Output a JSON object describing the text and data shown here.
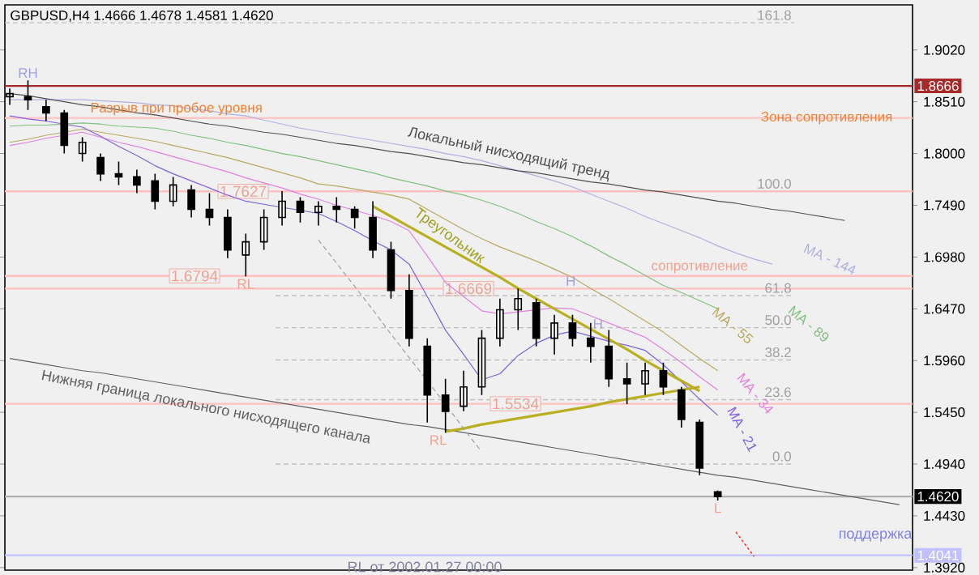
{
  "chart_data": {
    "type": "candlestick",
    "title": "GBPUSD,H4  1.4666 1.4678 1.4581 1.4620",
    "color": "#000000",
    "categories": [
      null,
      null,
      null,
      null,
      null,
      null,
      null,
      null,
      null,
      null,
      null,
      null,
      null,
      null,
      null,
      null,
      null,
      null,
      null,
      null,
      null,
      null,
      null,
      null,
      null,
      null,
      null,
      null,
      null,
      null,
      null,
      null,
      null,
      null,
      null,
      null,
      null,
      null,
      null,
      null,
      null,
      null,
      null,
      null,
      null,
      null,
      null,
      null,
      null,
      null
    ],
    "ohlc": [
      [
        1.856,
        1.864,
        1.848,
        1.859
      ],
      [
        1.856,
        1.872,
        1.843,
        1.853
      ],
      [
        1.846,
        1.853,
        1.832,
        1.84
      ],
      [
        1.84,
        1.843,
        1.8,
        1.808
      ],
      [
        1.8,
        1.816,
        1.792,
        1.811
      ],
      [
        1.796,
        1.8,
        1.773,
        1.78
      ],
      [
        1.78,
        1.792,
        1.769,
        1.777
      ],
      [
        1.777,
        1.784,
        1.761,
        1.769
      ],
      [
        1.773,
        1.78,
        1.745,
        1.753
      ],
      [
        1.753,
        1.777,
        1.748,
        1.769
      ],
      [
        1.764,
        1.769,
        1.737,
        1.745
      ],
      [
        1.745,
        1.761,
        1.729,
        1.737
      ],
      [
        1.737,
        1.745,
        1.697,
        1.705
      ],
      [
        1.7,
        1.721,
        1.679,
        1.713
      ],
      [
        1.713,
        1.745,
        1.705,
        1.737
      ],
      [
        1.737,
        1.763,
        1.729,
        1.753
      ],
      [
        1.753,
        1.757,
        1.732,
        1.742
      ],
      [
        1.742,
        1.753,
        1.729,
        1.748
      ],
      [
        1.748,
        1.757,
        1.732,
        1.745
      ],
      [
        1.745,
        1.748,
        1.726,
        1.737
      ],
      [
        1.737,
        1.753,
        1.697,
        1.705
      ],
      [
        1.705,
        1.713,
        1.657,
        1.665
      ],
      [
        1.665,
        1.681,
        1.61,
        1.618
      ],
      [
        1.61,
        1.618,
        1.535,
        1.562
      ],
      [
        1.562,
        1.578,
        1.525,
        1.546
      ],
      [
        1.551,
        1.586,
        1.546,
        1.57
      ],
      [
        1.57,
        1.626,
        1.562,
        1.618
      ],
      [
        1.618,
        1.657,
        1.61,
        1.646
      ],
      [
        1.646,
        1.667,
        1.626,
        1.657
      ],
      [
        1.653,
        1.657,
        1.61,
        1.618
      ],
      [
        1.618,
        1.641,
        1.602,
        1.633
      ],
      [
        1.633,
        1.641,
        1.61,
        1.618
      ],
      [
        1.618,
        1.633,
        1.594,
        1.61
      ],
      [
        1.61,
        1.626,
        1.57,
        1.578
      ],
      [
        1.578,
        1.594,
        1.553,
        1.573
      ],
      [
        1.573,
        1.594,
        1.562,
        1.586
      ],
      [
        1.586,
        1.594,
        1.562,
        1.57
      ],
      [
        1.567,
        1.57,
        1.53,
        1.538
      ],
      [
        1.535,
        1.538,
        1.483,
        1.49
      ],
      [
        1.4666,
        1.4678,
        1.4581,
        1.462
      ],
      null,
      null,
      null,
      null,
      null,
      null,
      null,
      null,
      null,
      null
    ],
    "ylim": [
      1.3895,
      1.9465
    ],
    "yticks": [
      {
        "value": 1.902,
        "label": "1.9020"
      },
      {
        "value": 1.851,
        "label": "1.8510"
      },
      {
        "value": 1.8,
        "label": "1.8000"
      },
      {
        "value": 1.749,
        "label": "1.7490"
      },
      {
        "value": 1.698,
        "label": "1.6980"
      },
      {
        "value": 1.647,
        "label": "1.6470"
      },
      {
        "value": 1.596,
        "label": "1.5960"
      },
      {
        "value": 1.545,
        "label": "1.5450"
      },
      {
        "value": 1.494,
        "label": "1.4940"
      },
      {
        "value": 1.443,
        "label": "1.4430"
      },
      {
        "value": 1.392,
        "label": "1.3920"
      }
    ],
    "tick_labels": "y",
    "series": [
      {
        "name": "MA - 144",
        "type": "line",
        "color": "#b0b0e0",
        "values": [
          1.853,
          1.853,
          1.853,
          1.853,
          1.853,
          1.852,
          1.851,
          1.85,
          1.848,
          1.847,
          1.844,
          1.842,
          1.839,
          1.837,
          1.833,
          1.829,
          1.825,
          1.822,
          1.819,
          1.816,
          1.813,
          1.81,
          1.807,
          1.804,
          1.8,
          1.797,
          1.793,
          1.788,
          1.783,
          1.778,
          1.773,
          1.767,
          1.76,
          1.753,
          1.746,
          1.738,
          1.731,
          1.724,
          1.717,
          1.709,
          1.702,
          1.696,
          1.691,
          null,
          null,
          null,
          null,
          null,
          null,
          null
        ]
      },
      {
        "name": "MA - 89",
        "type": "line",
        "color": "#80c080",
        "values": [
          1.827,
          1.828,
          1.828,
          1.829,
          1.83,
          1.829,
          1.827,
          1.826,
          1.825,
          1.822,
          1.818,
          1.815,
          1.811,
          1.808,
          1.804,
          1.8,
          1.797,
          1.793,
          1.789,
          1.785,
          1.781,
          1.776,
          1.772,
          1.768,
          1.763,
          1.759,
          1.754,
          1.748,
          1.741,
          1.733,
          1.726,
          1.718,
          1.709,
          1.699,
          1.69,
          1.68,
          1.67,
          1.663,
          1.655,
          1.647,
          null,
          null,
          null,
          null,
          null,
          null,
          null,
          null,
          null,
          null
        ]
      },
      {
        "name": "MA - 55",
        "type": "line",
        "color": "#b8a860",
        "values": [
          1.811,
          1.814,
          1.818,
          1.821,
          1.824,
          1.821,
          1.818,
          1.815,
          1.812,
          1.808,
          1.804,
          1.8,
          1.796,
          1.791,
          1.786,
          1.781,
          1.776,
          1.77,
          1.768,
          1.765,
          1.762,
          1.759,
          1.755,
          1.745,
          1.735,
          1.725,
          1.716,
          1.708,
          1.701,
          1.694,
          1.686,
          1.678,
          1.667,
          1.657,
          1.646,
          1.635,
          1.624,
          1.611,
          1.598,
          1.586,
          null,
          null,
          null,
          null,
          null,
          null,
          null,
          null,
          null,
          null
        ]
      },
      {
        "name": "MA - 34",
        "type": "line",
        "color": "#e080e0",
        "values": [
          1.808,
          1.811,
          1.815,
          1.818,
          1.821,
          1.816,
          1.811,
          1.807,
          1.802,
          1.797,
          1.792,
          1.787,
          1.782,
          1.776,
          1.771,
          1.766,
          1.76,
          1.755,
          1.749,
          1.744,
          1.739,
          1.733,
          1.724,
          1.699,
          1.673,
          1.659,
          1.645,
          1.642,
          1.644,
          1.646,
          1.648,
          1.647,
          1.64,
          1.633,
          1.626,
          1.619,
          1.607,
          1.594,
          1.58,
          1.567,
          null,
          null,
          null,
          null,
          null,
          null,
          null,
          null,
          null,
          null
        ]
      },
      {
        "name": "MA - 21",
        "type": "line",
        "color": "#8060e0",
        "values": [
          1.837,
          1.834,
          1.832,
          1.829,
          1.826,
          1.817,
          1.807,
          1.798,
          1.788,
          1.78,
          1.773,
          1.766,
          1.759,
          1.753,
          1.75,
          1.747,
          1.744,
          1.741,
          1.733,
          1.724,
          1.714,
          1.705,
          1.691,
          1.659,
          1.626,
          1.602,
          1.577,
          1.583,
          1.601,
          1.613,
          1.621,
          1.625,
          1.62,
          1.615,
          1.611,
          1.606,
          1.592,
          1.575,
          1.558,
          1.542,
          null,
          null,
          null,
          null,
          null,
          null,
          null,
          null,
          null,
          null
        ]
      },
      {
        "type": "line",
        "color": "#505050",
        "values": [
          1.859,
          1.857,
          1.854,
          1.851,
          1.848,
          1.846,
          1.843,
          1.84,
          1.838,
          1.835,
          1.832,
          1.829,
          1.827,
          1.824,
          1.821,
          1.819,
          1.816,
          1.813,
          1.81,
          1.808,
          1.805,
          1.802,
          1.8,
          1.797,
          1.794,
          1.791,
          1.789,
          1.786,
          1.783,
          1.781,
          1.778,
          1.775,
          1.772,
          1.77,
          1.767,
          1.764,
          1.762,
          1.759,
          1.756,
          1.753,
          1.751,
          1.748,
          1.745,
          1.743,
          1.74,
          1.737,
          1.734,
          null,
          null,
          null
        ]
      },
      {
        "type": "line",
        "color": "#606060",
        "values": [
          1.598,
          1.595,
          1.592,
          1.589,
          1.586,
          1.584,
          1.581,
          1.578,
          1.575,
          1.572,
          1.569,
          1.566,
          1.563,
          1.56,
          1.557,
          1.554,
          1.551,
          1.548,
          1.545,
          1.542,
          1.539,
          1.536,
          1.533,
          1.531,
          1.528,
          1.525,
          1.522,
          1.519,
          1.516,
          1.513,
          1.51,
          1.507,
          1.504,
          1.501,
          1.498,
          1.495,
          1.492,
          1.489,
          1.486,
          1.483,
          1.481,
          1.478,
          1.475,
          1.472,
          1.469,
          1.466,
          1.463,
          1.46,
          1.457,
          1.454
        ]
      },
      {
        "type": "line",
        "color": "#b8b020",
        "values": [
          null,
          null,
          null,
          null,
          null,
          null,
          null,
          null,
          null,
          null,
          null,
          null,
          null,
          null,
          null,
          null,
          null,
          null,
          null,
          null,
          1.748,
          1.738,
          1.728,
          1.718,
          1.708,
          1.698,
          1.688,
          1.678,
          1.667,
          1.657,
          1.647,
          1.637,
          1.627,
          1.617,
          1.607,
          1.596,
          1.586,
          1.576,
          1.566,
          null,
          null,
          null,
          null,
          null,
          null,
          null,
          null,
          null,
          null,
          null
        ]
      },
      {
        "type": "line",
        "color": "#b8b020",
        "values": [
          null,
          null,
          null,
          null,
          null,
          null,
          null,
          null,
          null,
          null,
          null,
          null,
          null,
          null,
          null,
          null,
          null,
          null,
          null,
          null,
          null,
          null,
          null,
          null,
          1.526,
          1.529,
          1.533,
          1.536,
          1.539,
          1.542,
          1.545,
          1.548,
          1.551,
          1.555,
          1.558,
          1.561,
          1.564,
          1.567,
          1.57,
          null,
          null,
          null,
          null,
          null,
          null,
          null,
          null,
          null,
          null,
          null
        ]
      },
      {
        "type": "line",
        "color": "#a0a0a0",
        "line_style": "dashed",
        "values": [
          null,
          null,
          null,
          null,
          null,
          null,
          null,
          null,
          null,
          null,
          null,
          null,
          null,
          null,
          null,
          null,
          null,
          1.715,
          1.692,
          1.669,
          1.646,
          1.622,
          1.599,
          1.576,
          1.553,
          1.529,
          1.506,
          null,
          null,
          null,
          null,
          null,
          null,
          null,
          null,
          null,
          null,
          null,
          null,
          null,
          null,
          null,
          null,
          null,
          null,
          null,
          null,
          null,
          null,
          null
        ]
      },
      {
        "type": "line",
        "color": "#ff0000",
        "line_style": "dotted",
        "values": [
          null,
          null,
          null,
          null,
          null,
          null,
          null,
          null,
          null,
          null,
          null,
          null,
          null,
          null,
          null,
          null,
          null,
          null,
          null,
          null,
          null,
          null,
          null,
          null,
          null,
          null,
          null,
          null,
          null,
          null,
          null,
          null,
          null,
          null,
          null,
          null,
          null,
          null,
          null,
          null,
          1.427,
          1.403,
          null,
          null,
          null,
          null,
          null,
          null,
          null,
          null
        ]
      }
    ],
    "ref_lines": [
      {
        "axis": "y",
        "value": 1.9288,
        "color": "#c0c0c0",
        "line_style": "dashed"
      },
      {
        "axis": "y",
        "value": 1.8666,
        "label": "1.8666",
        "color": "#a52a2a",
        "line_style": "solid"
      },
      {
        "axis": "y",
        "value": 1.835,
        "label": "Зона сопротивления",
        "color": "#ffc8c8",
        "line_style": "solid"
      },
      {
        "axis": "y",
        "value": 1.7627,
        "label": "1.7627",
        "color": "#ffc0c0",
        "line_style": "solid"
      },
      {
        "axis": "y",
        "value": 1.6794,
        "label": "1.6794",
        "color": "#ffc0c0",
        "line_style": "solid"
      },
      {
        "axis": "y",
        "value": 1.6669,
        "label": "1.6669",
        "color": "#ffc0c0",
        "line_style": "solid"
      },
      {
        "axis": "y",
        "value": 1.66,
        "color": "#c0c0c0",
        "line_style": "dashed"
      },
      {
        "axis": "y",
        "value": 1.6284,
        "color": "#c0c0c0",
        "line_style": "dashed"
      },
      {
        "axis": "y",
        "value": 1.5966,
        "color": "#c0c0c0",
        "line_style": "dashed"
      },
      {
        "axis": "y",
        "value": 1.5574,
        "color": "#c0c0c0",
        "line_style": "dashed"
      },
      {
        "axis": "y",
        "value": 1.5534,
        "label": "1.5534",
        "color": "#ffc0c0",
        "line_style": "solid"
      },
      {
        "axis": "y",
        "value": 1.494,
        "color": "#c0c0c0",
        "line_style": "dashed"
      },
      {
        "axis": "y",
        "value": 1.462,
        "label": "1.4620",
        "color": "#b0b0b0",
        "line_style": "solid"
      },
      {
        "axis": "y",
        "value": 1.4041,
        "label": "1.4041",
        "color": "#c0c0ff",
        "line_style": "solid"
      }
    ],
    "annotations": [
      {
        "text": "RH",
        "y": 1.872
      },
      {
        "text": "RL",
        "y": 1.679
      },
      {
        "text": "RL",
        "y": 1.525
      },
      {
        "text": "H",
        "y": 1.667
      },
      {
        "text": "H",
        "y": 1.632
      },
      {
        "text": "L",
        "y": 1.458
      },
      {
        "text": "Разрыв при пробое уровня",
        "y": 1.835
      },
      {
        "text": "сопротивление",
        "y": 1.6794
      },
      "Локальный нисходящий тренд",
      "Треугольник",
      "Нижняя граница локального нисходящего канала",
      "поддержка",
      "RL от 2002.01.27 00:00",
      {
        "text": "161.8",
        "y": 1.9288
      },
      {
        "text": "100.0",
        "y": 1.7627
      },
      {
        "text": "61.8",
        "y": 1.66
      },
      {
        "text": "50.0",
        "y": 1.6284
      },
      {
        "text": "38.2",
        "y": 1.5966
      },
      {
        "text": "23.6",
        "y": 1.5574
      },
      {
        "text": "0.0",
        "y": 1.494
      }
    ]
  }
}
